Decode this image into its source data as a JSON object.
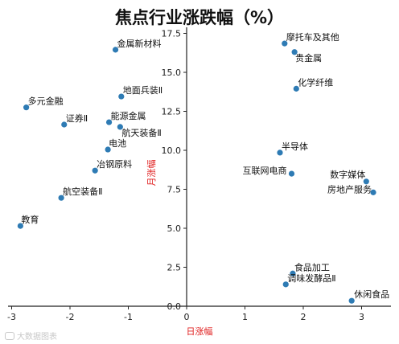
{
  "chart_data": {
    "type": "scatter",
    "title": "焦点行业涨跌幅（%）",
    "xlabel": "日涨幅",
    "ylabel": "月涨幅",
    "xlim": [
      -3.15,
      3.5
    ],
    "ylim": [
      -0.05,
      17.6
    ],
    "xticks": [
      -3,
      -2,
      -1,
      0,
      1,
      2,
      3
    ],
    "yticks": [
      0.0,
      2.5,
      5.0,
      7.5,
      10.0,
      12.5,
      15.0,
      17.5
    ],
    "grid": false,
    "colors": {
      "point": "#2e7bb4",
      "axis": "#222222",
      "axis_label": "#e02020"
    },
    "points": [
      {
        "label": "金属新材料",
        "x": -1.22,
        "y": 16.45
      },
      {
        "label": "摩托车及其他",
        "x": 1.68,
        "y": 16.85
      },
      {
        "label": "贵金属",
        "x": 1.85,
        "y": 16.3
      },
      {
        "label": "化学纤维",
        "x": 1.88,
        "y": 13.95
      },
      {
        "label": "地面兵装Ⅱ",
        "x": -1.12,
        "y": 13.45
      },
      {
        "label": "多元金融",
        "x": -2.75,
        "y": 12.75
      },
      {
        "label": "能源金属",
        "x": -1.33,
        "y": 11.8
      },
      {
        "label": "证券Ⅱ",
        "x": -2.1,
        "y": 11.65
      },
      {
        "label": "航天装备Ⅱ",
        "x": -1.14,
        "y": 11.5
      },
      {
        "label": "电池",
        "x": -1.35,
        "y": 10.05
      },
      {
        "label": "半导体",
        "x": 1.6,
        "y": 9.85
      },
      {
        "label": "冶钢原料",
        "x": -1.57,
        "y": 8.7
      },
      {
        "label": "互联网电商",
        "x": 1.8,
        "y": 8.5
      },
      {
        "label": "数字媒体",
        "x": 3.08,
        "y": 8.0
      },
      {
        "label": "房地产服务",
        "x": 3.2,
        "y": 7.3
      },
      {
        "label": "航空装备Ⅱ",
        "x": -2.15,
        "y": 6.95
      },
      {
        "label": "教育",
        "x": -2.85,
        "y": 5.15
      },
      {
        "label": "食品加工",
        "x": 1.82,
        "y": 2.1
      },
      {
        "label": "调味发酵品Ⅱ",
        "x": 1.7,
        "y": 1.4
      },
      {
        "label": "休闲食品",
        "x": 2.83,
        "y": 0.35
      }
    ]
  },
  "watermark": {
    "text": "大数据图表"
  }
}
